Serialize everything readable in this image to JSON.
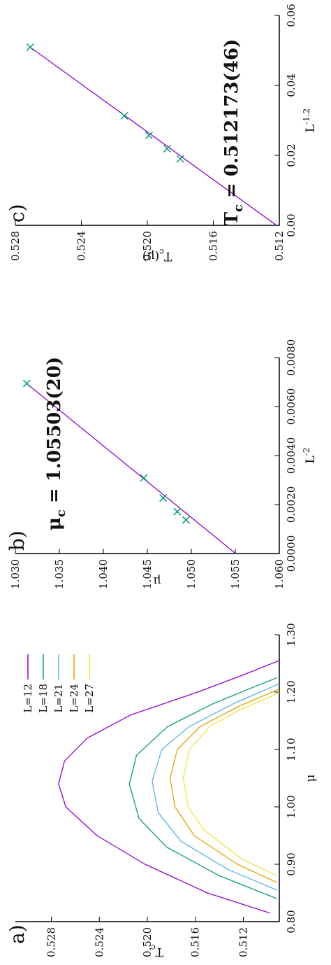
{
  "chart_data": [
    {
      "panel_label": "a)",
      "type": "line",
      "xlabel": "μ",
      "ylabel": "T",
      "ylabel_sub": "c",
      "xlim": [
        0.8,
        1.3
      ],
      "ylim": [
        0.509,
        0.531
      ],
      "xticks": [
        "0.80",
        "0.90",
        "1.00",
        "1.10",
        "1.20",
        "1.30"
      ],
      "yticks": [
        "0.512",
        "0.516",
        "0.520",
        "0.524",
        "0.528"
      ],
      "legend_position": "top-right",
      "series": [
        {
          "name": "L=12",
          "color": "#9400d3",
          "values": [
            {
              "x": 0.815,
              "y": 0.5098
            },
            {
              "x": 0.85,
              "y": 0.515
            },
            {
              "x": 0.9,
              "y": 0.5202
            },
            {
              "x": 0.95,
              "y": 0.5242
            },
            {
              "x": 1.0,
              "y": 0.5268
            },
            {
              "x": 1.04,
              "y": 0.5274
            },
            {
              "x": 1.08,
              "y": 0.5269
            },
            {
              "x": 1.12,
              "y": 0.525
            },
            {
              "x": 1.16,
              "y": 0.5214
            },
            {
              "x": 1.2,
              "y": 0.5158
            },
            {
              "x": 1.23,
              "y": 0.512
            },
            {
              "x": 1.255,
              "y": 0.509
            }
          ]
        },
        {
          "name": "L=18",
          "color": "#009e73",
          "values": [
            {
              "x": 0.84,
              "y": 0.5092
            },
            {
              "x": 0.88,
              "y": 0.514
            },
            {
              "x": 0.93,
              "y": 0.5184
            },
            {
              "x": 0.98,
              "y": 0.5207
            },
            {
              "x": 1.04,
              "y": 0.5215
            },
            {
              "x": 1.09,
              "y": 0.5209
            },
            {
              "x": 1.14,
              "y": 0.5183
            },
            {
              "x": 1.18,
              "y": 0.5145
            },
            {
              "x": 1.21,
              "y": 0.511
            },
            {
              "x": 1.225,
              "y": 0.5092
            }
          ]
        },
        {
          "name": "L=21",
          "color": "#56b4e9",
          "values": [
            {
              "x": 0.855,
              "y": 0.5092
            },
            {
              "x": 0.89,
              "y": 0.5132
            },
            {
              "x": 0.94,
              "y": 0.5172
            },
            {
              "x": 0.99,
              "y": 0.5191
            },
            {
              "x": 1.045,
              "y": 0.5196
            },
            {
              "x": 1.1,
              "y": 0.5188
            },
            {
              "x": 1.14,
              "y": 0.5165
            },
            {
              "x": 1.18,
              "y": 0.5128
            },
            {
              "x": 1.21,
              "y": 0.5095
            },
            {
              "x": 1.215,
              "y": 0.509
            }
          ]
        },
        {
          "name": "L=24",
          "color": "#e69f00",
          "values": [
            {
              "x": 0.868,
              "y": 0.5092
            },
            {
              "x": 0.9,
              "y": 0.5125
            },
            {
              "x": 0.95,
              "y": 0.5161
            },
            {
              "x": 1.0,
              "y": 0.5177
            },
            {
              "x": 1.05,
              "y": 0.5181
            },
            {
              "x": 1.1,
              "y": 0.5175
            },
            {
              "x": 1.14,
              "y": 0.5156
            },
            {
              "x": 1.175,
              "y": 0.5124
            },
            {
              "x": 1.2,
              "y": 0.5096
            },
            {
              "x": 1.205,
              "y": 0.5091
            }
          ]
        },
        {
          "name": "L=27",
          "color": "#f0e442",
          "values": [
            {
              "x": 0.88,
              "y": 0.5092
            },
            {
              "x": 0.91,
              "y": 0.5122
            },
            {
              "x": 0.96,
              "y": 0.5153
            },
            {
              "x": 1.0,
              "y": 0.5166
            },
            {
              "x": 1.05,
              "y": 0.517
            },
            {
              "x": 1.1,
              "y": 0.5165
            },
            {
              "x": 1.14,
              "y": 0.5148
            },
            {
              "x": 1.17,
              "y": 0.5122
            },
            {
              "x": 1.195,
              "y": 0.5094
            },
            {
              "x": 1.2,
              "y": 0.509
            }
          ]
        }
      ]
    },
    {
      "panel_label": "b)",
      "type": "scatter",
      "xlabel": "L",
      "xlabel_sup": "-2",
      "ylabel": "μ",
      "xlim": [
        0.0,
        0.008
      ],
      "ylim": [
        1.03,
        1.06
      ],
      "y_reversed": true,
      "xticks": [
        "0.0000",
        "0.0020",
        "0.0040",
        "0.0060",
        "0.0080"
      ],
      "yticks": [
        "1.060",
        "1.055",
        "1.050",
        "1.045",
        "1.040",
        "1.035",
        "1.030"
      ],
      "annotation": {
        "base": "μ",
        "sub": "c",
        "text": " = 1.05503(20)"
      },
      "points": {
        "color": "#009e73",
        "values": [
          {
            "x": 0.00137,
            "y": 1.0494
          },
          {
            "x": 0.00171,
            "y": 1.0484
          },
          {
            "x": 0.00227,
            "y": 1.0468
          },
          {
            "x": 0.00309,
            "y": 1.0446
          },
          {
            "x": 0.00694,
            "y": 1.0313
          }
        ]
      },
      "fit": {
        "color": "#9400d3",
        "x": [
          0.0,
          0.00694
        ],
        "y": [
          1.05503,
          1.0313
        ]
      }
    },
    {
      "panel_label": "c)",
      "type": "scatter",
      "xlabel": "L",
      "xlabel_sup": "-1.2",
      "ylabel": "T",
      "ylabel_sub": "c",
      "ylabel_tail": "(μ)",
      "xlim": [
        0.0,
        0.06
      ],
      "ylim": [
        0.512,
        0.528
      ],
      "xticks": [
        "0.00",
        "0.02",
        "0.04",
        "0.06"
      ],
      "yticks": [
        "0.512",
        "0.516",
        "0.520",
        "0.524",
        "0.528"
      ],
      "annotation": {
        "base": "T",
        "sub": "c",
        "text": " = 0.512173(46)"
      },
      "points": {
        "color": "#009e73",
        "values": [
          {
            "x": 0.019,
            "y": 0.518
          },
          {
            "x": 0.0219,
            "y": 0.5188
          },
          {
            "x": 0.0257,
            "y": 0.5199
          },
          {
            "x": 0.0313,
            "y": 0.5214
          },
          {
            "x": 0.0509,
            "y": 0.5271
          }
        ]
      },
      "fit": {
        "color": "#9400d3",
        "x": [
          0.0,
          0.0509
        ],
        "y": [
          0.512173,
          0.5271
        ]
      }
    }
  ]
}
